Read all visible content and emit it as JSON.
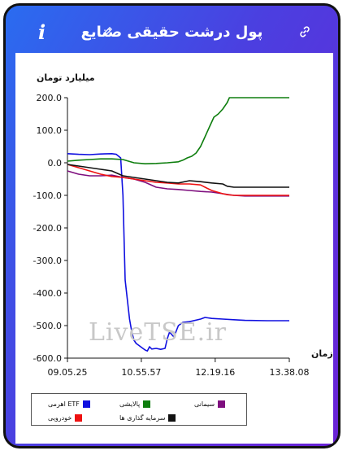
{
  "header": {
    "title": "پول درشت حقیقی صنایع",
    "info_icon": "i"
  },
  "chart_data": {
    "type": "line",
    "ylabel": "میلیارد تومان",
    "xlabel": "زمان",
    "ylim": [
      -600,
      200
    ],
    "yticks": [
      "200.0",
      "100.0",
      "0.0",
      "-100.0",
      "-200.0",
      "-300.0",
      "-400.0",
      "-500.0",
      "-600.0"
    ],
    "yvals": [
      200,
      100,
      0,
      -100,
      -200,
      -300,
      -400,
      -500,
      -600
    ],
    "xticks": [
      "09.05.25",
      "10.55.57",
      "12.19.16",
      "13.38.08"
    ],
    "xrange": [
      0,
      100
    ],
    "xtick_pos": [
      0,
      33.3,
      66.6,
      100
    ],
    "grid": false,
    "legend_position": "bottom",
    "series": [
      {
        "name": "ETF اهرمی",
        "color": "#1010e0",
        "x": [
          0,
          5,
          10,
          15,
          20,
          22,
          24,
          25,
          26,
          27,
          28,
          29,
          30,
          31,
          32,
          34,
          35,
          36,
          37,
          38,
          40,
          42,
          44,
          45,
          46,
          48,
          50,
          52,
          55,
          60,
          62,
          65,
          70,
          75,
          80,
          90,
          100
        ],
        "y": [
          28,
          26,
          25,
          27,
          28,
          26,
          15,
          -100,
          -360,
          -420,
          -480,
          -520,
          -545,
          -555,
          -560,
          -570,
          -575,
          -578,
          -565,
          -572,
          -570,
          -573,
          -570,
          -540,
          -520,
          -535,
          -500,
          -490,
          -488,
          -480,
          -475,
          -478,
          -480,
          -482,
          -484,
          -485,
          -485
        ]
      },
      {
        "name": "پالایشی",
        "color": "#0e7e0e",
        "x": [
          0,
          5,
          10,
          15,
          20,
          25,
          30,
          35,
          40,
          45,
          50,
          52,
          54,
          56,
          58,
          60,
          62,
          64,
          66,
          68,
          70,
          72,
          73,
          74,
          76,
          80,
          90,
          100
        ],
        "y": [
          5,
          8,
          10,
          12,
          12,
          10,
          0,
          -3,
          -2,
          0,
          3,
          8,
          15,
          20,
          30,
          50,
          80,
          110,
          140,
          150,
          165,
          185,
          200,
          200,
          200,
          200,
          200,
          200
        ]
      },
      {
        "name": "سیمانی",
        "color": "#7e0e7e",
        "x": [
          0,
          5,
          10,
          15,
          20,
          25,
          30,
          35,
          40,
          45,
          50,
          55,
          60,
          65,
          70,
          75,
          80,
          90,
          100
        ],
        "y": [
          -25,
          -35,
          -40,
          -40,
          -38,
          -45,
          -50,
          -60,
          -75,
          -80,
          -82,
          -85,
          -88,
          -90,
          -95,
          -100,
          -102,
          -102,
          -102
        ]
      },
      {
        "name": "خودرویی",
        "color": "#ee1111",
        "x": [
          0,
          5,
          10,
          15,
          20,
          25,
          30,
          35,
          40,
          45,
          50,
          55,
          60,
          62,
          65,
          70,
          72,
          75,
          80,
          90,
          100
        ],
        "y": [
          -5,
          -15,
          -25,
          -35,
          -42,
          -45,
          -50,
          -55,
          -60,
          -62,
          -65,
          -65,
          -68,
          -75,
          -85,
          -95,
          -98,
          -100,
          -100,
          -100,
          -100
        ]
      },
      {
        "name": "سرمایه گذاری ها",
        "color": "#111111",
        "x": [
          0,
          5,
          10,
          15,
          20,
          25,
          30,
          35,
          40,
          45,
          50,
          55,
          60,
          65,
          70,
          72,
          75,
          80,
          85,
          90,
          100
        ],
        "y": [
          -5,
          -10,
          -15,
          -20,
          -25,
          -40,
          -45,
          -50,
          -55,
          -60,
          -62,
          -55,
          -58,
          -62,
          -65,
          -72,
          -75,
          -75,
          -75,
          -75,
          -75
        ]
      }
    ]
  },
  "watermark": "LiveTSE.ir"
}
